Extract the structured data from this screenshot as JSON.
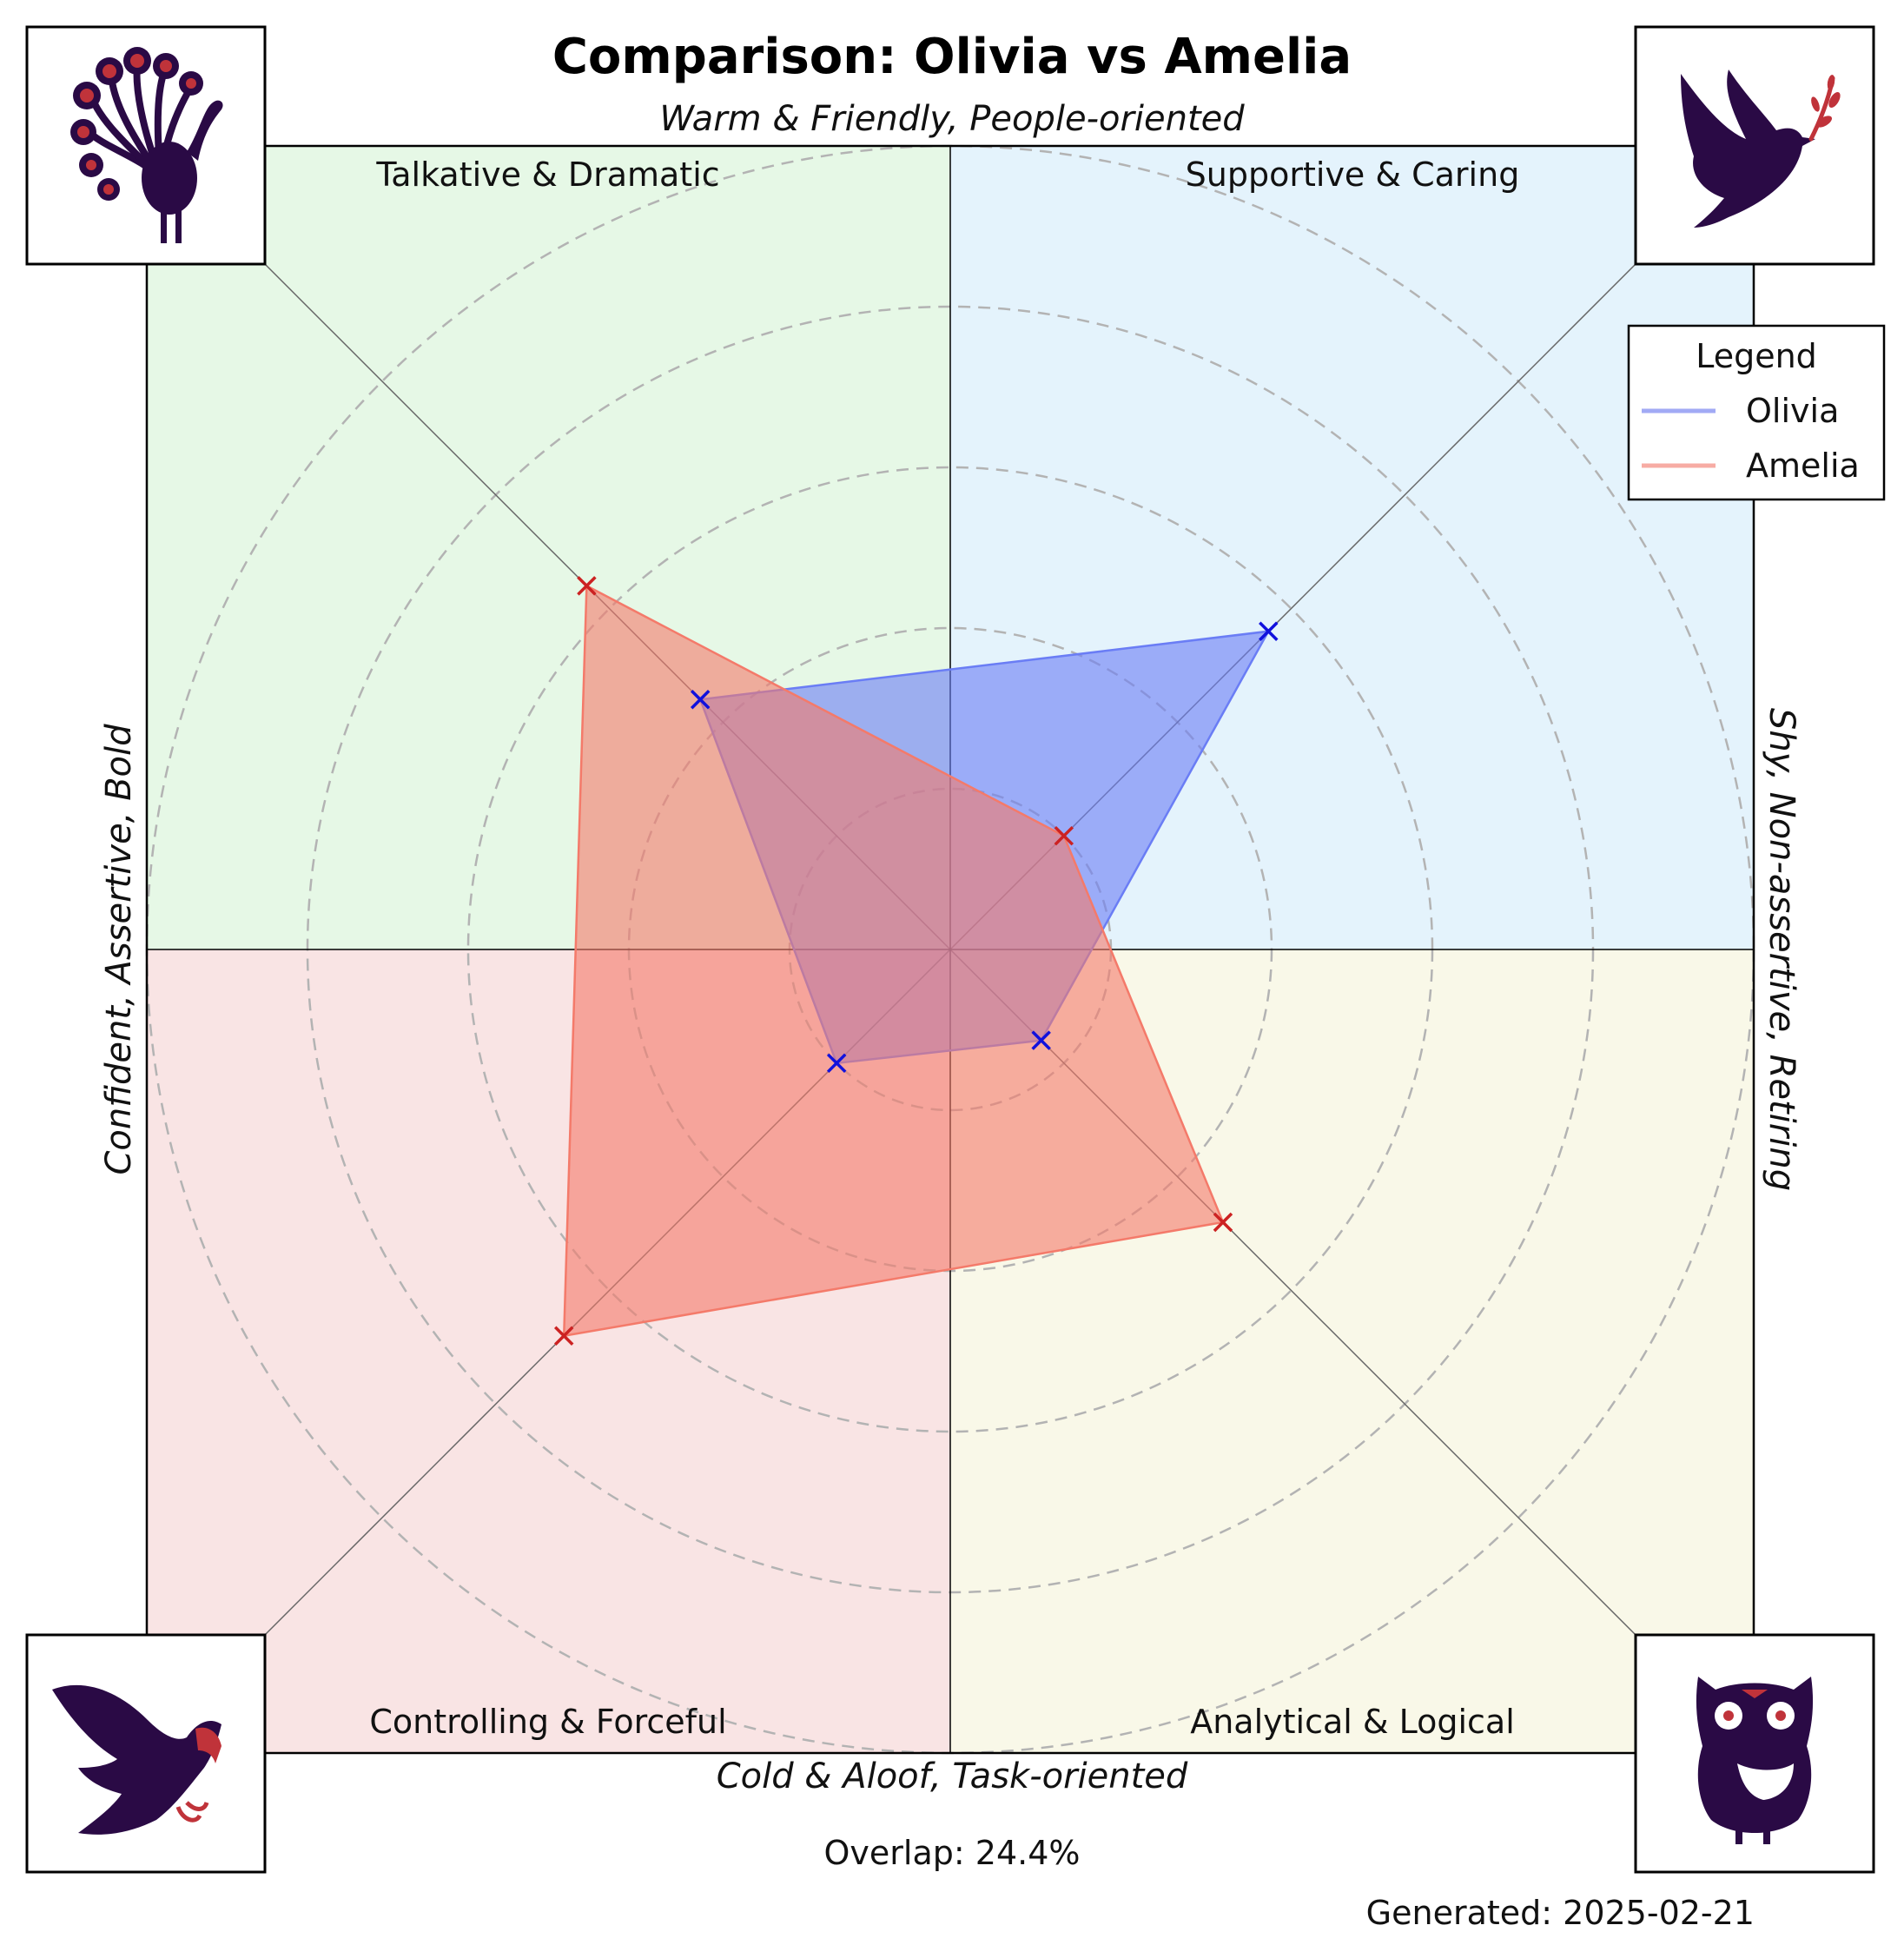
{
  "title": "Comparison: Olivia vs Amelia",
  "axis_labels": {
    "top": "Warm & Friendly, People-oriented",
    "bottom": "Cold & Aloof, Task-oriented",
    "left": "Confident, Assertive, Bold",
    "right": "Shy, Non-assertive, Retiring"
  },
  "quadrants": [
    {
      "key": "top-left",
      "label": "Talkative & Dramatic",
      "color": "#e6f8e6",
      "icon": "peacock-icon"
    },
    {
      "key": "top-right",
      "label": "Supportive & Caring",
      "color": "#e4f3fc",
      "icon": "dove-icon"
    },
    {
      "key": "bottom-left",
      "label": "Controlling & Forceful",
      "color": "#f9e4e4",
      "icon": "eagle-icon"
    },
    {
      "key": "bottom-right",
      "label": "Analytical & Logical",
      "color": "#f9f8e8",
      "icon": "owl-icon"
    }
  ],
  "legend": {
    "title": "Legend",
    "items": [
      {
        "name": "Olivia",
        "color": "#5566ee"
      },
      {
        "name": "Amelia",
        "color": "#f26a5a"
      }
    ]
  },
  "overlap_text": "Overlap: 24.4%",
  "generated_text": "Generated: 2025-02-21",
  "colors": {
    "olivia_fill": "#6a7df5",
    "olivia_marker": "#1111dd",
    "amelia_fill": "#f47a6a",
    "amelia_marker": "#cc2222",
    "icon_dark": "#2a0a45",
    "icon_red": "#c0333a",
    "grid": "#b3b3b3"
  },
  "chart_data": {
    "type": "radar",
    "axes": [
      "Talkative & Dramatic",
      "Supportive & Caring",
      "Analytical & Logical",
      "Controlling & Forceful"
    ],
    "rlim": [
      0,
      10
    ],
    "grid": true,
    "legend_position": "top-right",
    "series": [
      {
        "name": "Olivia",
        "values": [
          4.4,
          5.6,
          1.6,
          2.0
        ]
      },
      {
        "name": "Amelia",
        "values": [
          6.4,
          2.0,
          4.8,
          6.8
        ]
      }
    ]
  }
}
